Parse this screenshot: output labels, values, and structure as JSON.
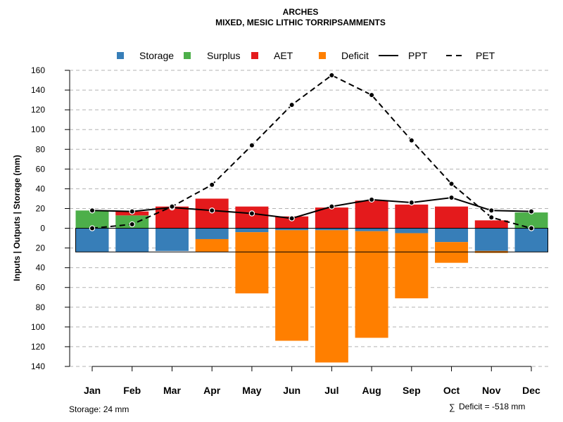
{
  "chart_data": {
    "type": "bar",
    "title": "ARCHES",
    "subtitle": "MIXED, MESIC LITHIC TORRIPSAMMENTS",
    "ylabel": "Inputs | Outputs | Storage    (mm)",
    "xlabel": "",
    "ylim": [
      -140,
      160
    ],
    "yticks": [
      160,
      140,
      120,
      100,
      80,
      60,
      40,
      20,
      0,
      -20,
      -40,
      -60,
      -80,
      -100,
      -120,
      -140
    ],
    "ytick_labels": [
      "160",
      "140",
      "120",
      "100",
      "80",
      "60",
      "40",
      "20",
      "0",
      "20",
      "40",
      "60",
      "80",
      "100",
      "120",
      "140"
    ],
    "grid": true,
    "legend_position": "top",
    "categories": [
      "Jan",
      "Feb",
      "Mar",
      "Apr",
      "May",
      "Jun",
      "Jul",
      "Aug",
      "Sep",
      "Oct",
      "Nov",
      "Dec"
    ],
    "series": [
      {
        "name": "Storage",
        "kind": "bar",
        "color": "#377eb8",
        "values": [
          -24,
          -24,
          -23,
          -11,
          -4,
          -2,
          -2,
          -3,
          -5,
          -14,
          -23,
          -24
        ]
      },
      {
        "name": "Surplus",
        "kind": "bar",
        "color": "#4daf4a",
        "values": [
          18,
          13,
          0,
          0,
          0,
          0,
          0,
          0,
          0,
          0,
          0,
          16
        ]
      },
      {
        "name": "AET",
        "kind": "bar",
        "color": "#e41a1c",
        "values": [
          0,
          4,
          22,
          30,
          22,
          12,
          21,
          28,
          24,
          22,
          8,
          0
        ]
      },
      {
        "name": "Deficit",
        "kind": "bar",
        "color": "#ff7f00",
        "values": [
          0,
          0,
          0,
          -13,
          -62,
          -112,
          -134,
          -108,
          -66,
          -21,
          -2,
          0
        ]
      },
      {
        "name": "PPT",
        "kind": "line",
        "style": "solid",
        "color": "#000000",
        "values": [
          18,
          17,
          21,
          18,
          15,
          10,
          22,
          29,
          26,
          31,
          18,
          17
        ]
      },
      {
        "name": "PET",
        "kind": "line",
        "style": "dashed",
        "color": "#000000",
        "values": [
          0,
          4,
          22,
          44,
          84,
          125,
          155,
          135,
          89,
          45,
          11,
          0
        ]
      }
    ],
    "storage_capacity": 24,
    "annotations": {
      "storage": "Storage: 24 mm",
      "deficit_symbol": "∑",
      "deficit": "Deficit = -518 mm"
    }
  }
}
